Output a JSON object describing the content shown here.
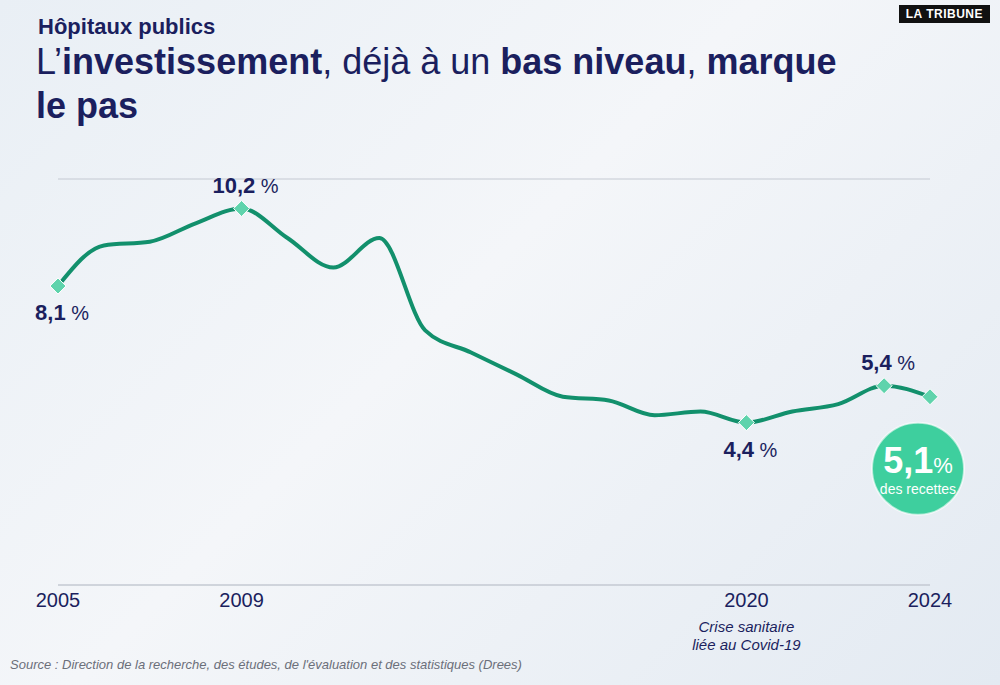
{
  "chart_data": {
    "type": "line",
    "kicker": "Hôpitaux publics",
    "title": "L’investissement, déjà à un bas niveau, marque le pas",
    "title_bold": [
      "investissement",
      "bas niveau",
      "marque le pas"
    ],
    "brand": "LA TRIBUNE",
    "source": "Source : Direction de la recherche, des études, de l'évaluation et des statistiques (Drees)",
    "x": [
      2005,
      2006,
      2007,
      2008,
      2009,
      2010,
      2011,
      2012,
      2013,
      2014,
      2015,
      2016,
      2017,
      2018,
      2019,
      2020,
      2021,
      2022,
      2023,
      2024
    ],
    "values": [
      8.1,
      9.2,
      9.3,
      9.8,
      10.2,
      9.4,
      8.6,
      9.4,
      6.9,
      6.3,
      5.7,
      5.1,
      5.0,
      4.6,
      4.7,
      4.4,
      4.7,
      4.9,
      5.4,
      5.1
    ],
    "value_labels": [
      "8,1 %",
      null,
      null,
      null,
      "10,2 %",
      null,
      null,
      null,
      null,
      null,
      null,
      null,
      null,
      null,
      null,
      "4,4 %",
      null,
      null,
      "5,4 %",
      null
    ],
    "color": "#12906c",
    "marker": "diamond",
    "xlim": [
      2005,
      2024
    ],
    "xticks": [
      2005,
      2009,
      2020,
      2024
    ],
    "ylim": [
      0,
      11
    ],
    "yticks": [
      0,
      5,
      10
    ],
    "grid": true,
    "tick_labels": "x",
    "annotations": [
      {
        "x": 2024,
        "y": 5.1,
        "label": "5,1",
        "unit": "%",
        "text": "des recettes"
      },
      {
        "x": 2020,
        "lines": [
          "Crise sanitaire",
          "liée au Covid-19"
        ]
      }
    ]
  }
}
